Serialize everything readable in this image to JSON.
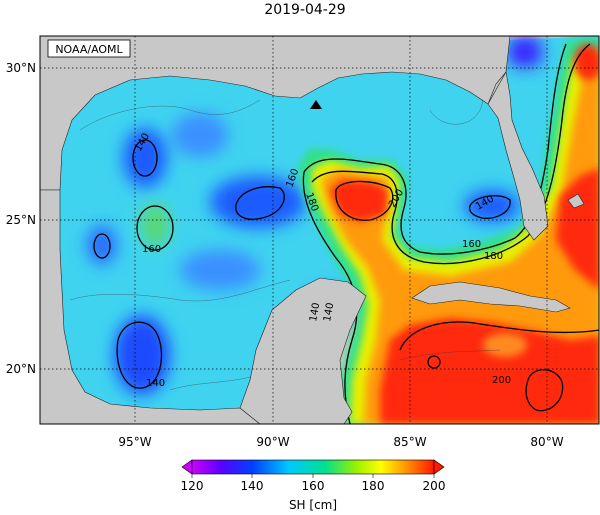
{
  "title": "2019-04-29",
  "credit": "NOAA/AOML",
  "y_ticks": [
    "30°N",
    "25°N",
    "20°N"
  ],
  "x_ticks": [
    "95°W",
    "90°W",
    "85°W",
    "80°W"
  ],
  "contour_labels": {
    "c1": "140",
    "c2": "160",
    "c3": "140",
    "c4": "180",
    "c5": "160",
    "c6": "200",
    "c7": "140",
    "c8": "160",
    "c9": "180",
    "c10": "140",
    "c11": "140",
    "c12": "200"
  },
  "colorbar": {
    "ticks": [
      "120",
      "140",
      "160",
      "180",
      "200"
    ],
    "label": "SH [cm]",
    "min": 120,
    "max": 200
  },
  "colors": {
    "land": "#c8c8c8",
    "ocean_base": "#3fd3f0"
  },
  "marker_icon": "triangle-marker-icon"
}
